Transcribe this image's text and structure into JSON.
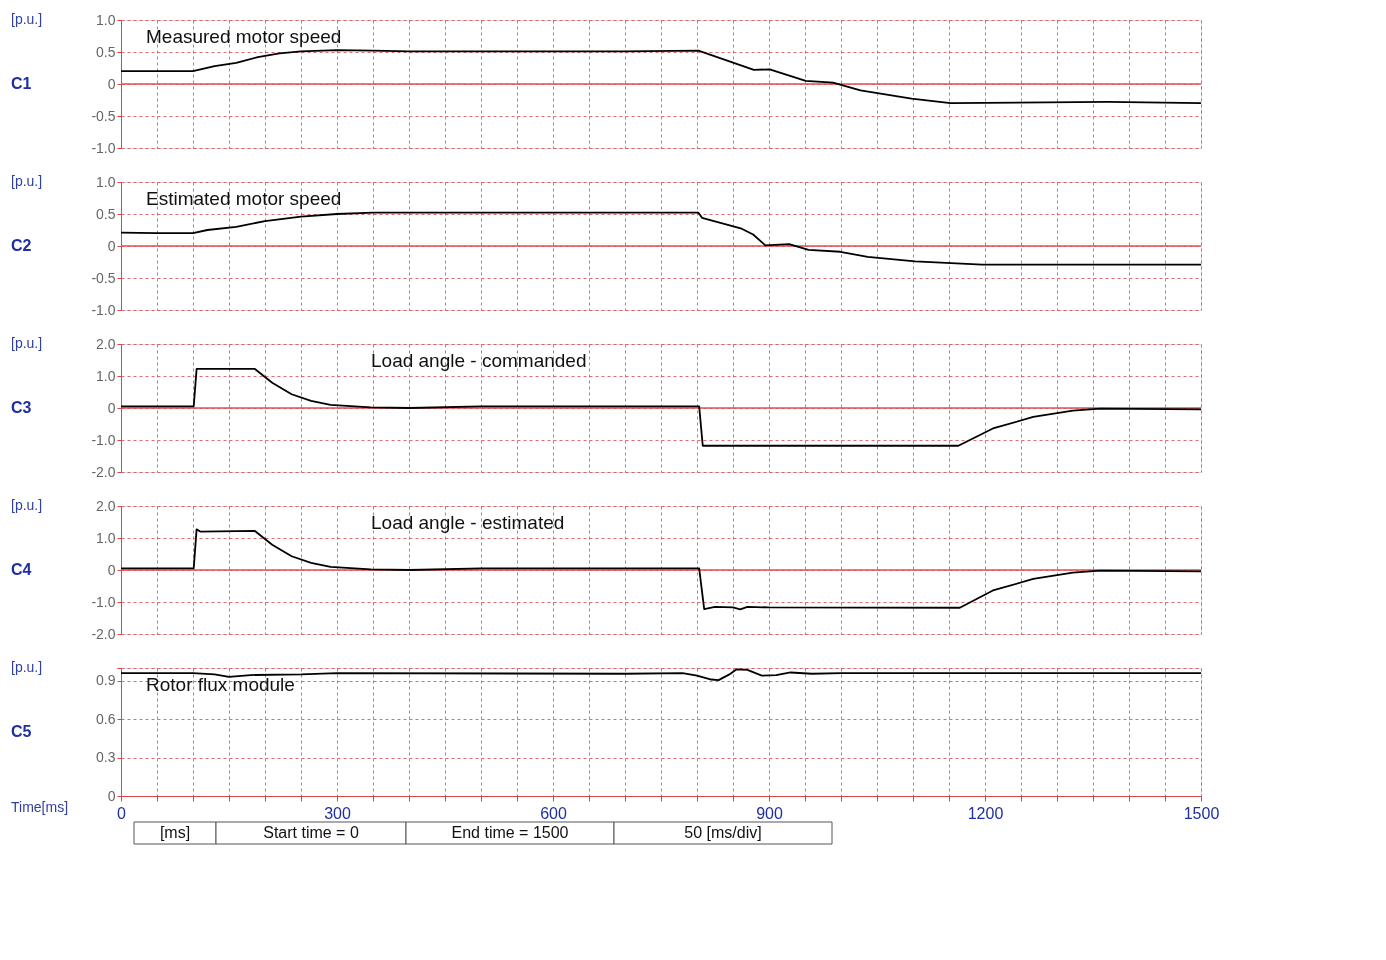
{
  "chart_data": [
    {
      "type": "line",
      "title": "Measured motor speed",
      "ylabel": "[p.u.]",
      "annotations": [
        "C1"
      ],
      "tick_labels": "y",
      "grid": true,
      "x": [
        0,
        100,
        130,
        160,
        190,
        220,
        250,
        300,
        350,
        400,
        500,
        600,
        700,
        802,
        879,
        901,
        951,
        989,
        1027,
        1098,
        1152,
        1370,
        1500
      ],
      "series": [
        {
          "color": "#000000",
          "values": [
            0.2,
            0.2,
            0.28,
            0.33,
            0.42,
            0.48,
            0.51,
            0.53,
            0.52,
            0.51,
            0.51,
            0.51,
            0.51,
            0.52,
            0.22,
            0.23,
            0.05,
            0.02,
            -0.1,
            -0.23,
            -0.3,
            -0.28,
            -0.3
          ]
        }
      ],
      "xlim": [
        0,
        1500
      ],
      "xticks": [
        0,
        {
          "value": 50,
          "label": null
        },
        {
          "value": 100,
          "label": null
        },
        {
          "value": 150,
          "label": null
        },
        {
          "value": 200,
          "label": null
        },
        {
          "value": 250,
          "label": null
        },
        300,
        {
          "value": 350,
          "label": null
        },
        {
          "value": 400,
          "label": null
        },
        {
          "value": 450,
          "label": null
        },
        {
          "value": 500,
          "label": null
        },
        {
          "value": 550,
          "label": null
        },
        600,
        {
          "value": 650,
          "label": null
        },
        {
          "value": 700,
          "label": null
        },
        {
          "value": 750,
          "label": null
        },
        {
          "value": 800,
          "label": null
        },
        {
          "value": 850,
          "label": null
        },
        900,
        {
          "value": 950,
          "label": null
        },
        {
          "value": 1000,
          "label": null
        },
        {
          "value": 1050,
          "label": null
        },
        {
          "value": 1100,
          "label": null
        },
        {
          "value": 1150,
          "label": null
        },
        1200,
        {
          "value": 1250,
          "label": null
        },
        {
          "value": 1300,
          "label": null
        },
        {
          "value": 1350,
          "label": null
        },
        {
          "value": 1400,
          "label": null
        },
        {
          "value": 1450,
          "label": null
        },
        1500
      ],
      "ylim": [
        -1,
        1
      ],
      "yticks": [
        {
          "value": -1,
          "label": "-1.0"
        },
        -0.5,
        0,
        0.5,
        {
          "value": 1,
          "label": "1.0"
        }
      ],
      "ref_lines": [
        {
          "axis": "y",
          "value": 0,
          "color": "#e05050"
        }
      ]
    },
    {
      "type": "line",
      "title": "Estimated motor speed",
      "ylabel": "[p.u.]",
      "annotations": [
        "C2"
      ],
      "tick_labels": "y",
      "grid": true,
      "x": [
        0,
        50,
        100,
        120,
        160,
        200,
        250,
        300,
        350,
        802,
        807,
        862,
        878,
        895,
        928,
        955,
        999,
        1037,
        1103,
        1196,
        1500
      ],
      "series": [
        {
          "color": "#000000",
          "values": [
            0.21,
            0.2,
            0.2,
            0.25,
            0.3,
            0.39,
            0.46,
            0.5,
            0.52,
            0.52,
            0.44,
            0.27,
            0.18,
            0.01,
            0.03,
            -0.06,
            -0.09,
            -0.17,
            -0.24,
            -0.29,
            -0.29
          ]
        }
      ],
      "xlim": [
        0,
        1500
      ],
      "xticks": [
        0,
        {
          "value": 50,
          "label": null
        },
        {
          "value": 100,
          "label": null
        },
        {
          "value": 150,
          "label": null
        },
        {
          "value": 200,
          "label": null
        },
        {
          "value": 250,
          "label": null
        },
        300,
        {
          "value": 350,
          "label": null
        },
        {
          "value": 400,
          "label": null
        },
        {
          "value": 450,
          "label": null
        },
        {
          "value": 500,
          "label": null
        },
        {
          "value": 550,
          "label": null
        },
        600,
        {
          "value": 650,
          "label": null
        },
        {
          "value": 700,
          "label": null
        },
        {
          "value": 750,
          "label": null
        },
        {
          "value": 800,
          "label": null
        },
        {
          "value": 850,
          "label": null
        },
        900,
        {
          "value": 950,
          "label": null
        },
        {
          "value": 1000,
          "label": null
        },
        {
          "value": 1050,
          "label": null
        },
        {
          "value": 1100,
          "label": null
        },
        {
          "value": 1150,
          "label": null
        },
        1200,
        {
          "value": 1250,
          "label": null
        },
        {
          "value": 1300,
          "label": null
        },
        {
          "value": 1350,
          "label": null
        },
        {
          "value": 1400,
          "label": null
        },
        {
          "value": 1450,
          "label": null
        },
        1500
      ],
      "ylim": [
        -1,
        1
      ],
      "yticks": [
        {
          "value": -1,
          "label": "-1.0"
        },
        -0.5,
        0,
        0.5,
        {
          "value": 1,
          "label": "1.0"
        }
      ],
      "ref_lines": [
        {
          "axis": "y",
          "value": 0,
          "color": "#e05050"
        }
      ]
    },
    {
      "type": "line",
      "title": "Load angle - commanded",
      "ylabel": "[p.u.]",
      "annotations": [
        "C3"
      ],
      "tick_labels": "y",
      "grid": true,
      "x": [
        0,
        101,
        105,
        186,
        210,
        237,
        264,
        291,
        347,
        401,
        500,
        600,
        700,
        803,
        808,
        1163,
        1211,
        1267,
        1322,
        1360,
        1500
      ],
      "series": [
        {
          "color": "#000000",
          "values": [
            0.05,
            0.05,
            1.22,
            1.22,
            0.79,
            0.43,
            0.22,
            0.1,
            0.02,
            0.0,
            0.05,
            0.05,
            0.05,
            0.05,
            -1.18,
            -1.18,
            -0.64,
            -0.28,
            -0.08,
            -0.02,
            -0.04
          ]
        }
      ],
      "xlim": [
        0,
        1500
      ],
      "xticks": [
        0,
        {
          "value": 50,
          "label": null
        },
        {
          "value": 100,
          "label": null
        },
        {
          "value": 150,
          "label": null
        },
        {
          "value": 200,
          "label": null
        },
        {
          "value": 250,
          "label": null
        },
        300,
        {
          "value": 350,
          "label": null
        },
        {
          "value": 400,
          "label": null
        },
        {
          "value": 450,
          "label": null
        },
        {
          "value": 500,
          "label": null
        },
        {
          "value": 550,
          "label": null
        },
        600,
        {
          "value": 650,
          "label": null
        },
        {
          "value": 700,
          "label": null
        },
        {
          "value": 750,
          "label": null
        },
        {
          "value": 800,
          "label": null
        },
        {
          "value": 850,
          "label": null
        },
        900,
        {
          "value": 950,
          "label": null
        },
        {
          "value": 1000,
          "label": null
        },
        {
          "value": 1050,
          "label": null
        },
        {
          "value": 1100,
          "label": null
        },
        {
          "value": 1150,
          "label": null
        },
        1200,
        {
          "value": 1250,
          "label": null
        },
        {
          "value": 1300,
          "label": null
        },
        {
          "value": 1350,
          "label": null
        },
        {
          "value": 1400,
          "label": null
        },
        {
          "value": 1450,
          "label": null
        },
        1500
      ],
      "ylim": [
        -2,
        2
      ],
      "yticks": [
        {
          "value": -2,
          "label": "-2.0"
        },
        {
          "value": -1,
          "label": "-1.0"
        },
        0,
        {
          "value": 1,
          "label": "1.0"
        },
        {
          "value": 2,
          "label": "2.0"
        }
      ],
      "ref_lines": [
        {
          "axis": "y",
          "value": 0,
          "color": "#e05050"
        }
      ]
    },
    {
      "type": "line",
      "title": "Load angle - estimated",
      "ylabel": "[p.u.]",
      "annotations": [
        "C4"
      ],
      "tick_labels": "y",
      "grid": true,
      "x": [
        0,
        101,
        105,
        110,
        186,
        210,
        237,
        264,
        291,
        347,
        401,
        500,
        600,
        700,
        803,
        810,
        825,
        850,
        860,
        870,
        900,
        1165,
        1211,
        1267,
        1322,
        1360,
        1500
      ],
      "series": [
        {
          "color": "#000000",
          "values": [
            0.05,
            0.05,
            1.27,
            1.2,
            1.22,
            0.79,
            0.43,
            0.22,
            0.1,
            0.02,
            0.0,
            0.05,
            0.05,
            0.05,
            0.05,
            -1.22,
            -1.15,
            -1.17,
            -1.23,
            -1.15,
            -1.17,
            -1.18,
            -0.64,
            -0.28,
            -0.08,
            -0.02,
            -0.04
          ]
        }
      ],
      "xlim": [
        0,
        1500
      ],
      "xticks": [
        0,
        {
          "value": 50,
          "label": null
        },
        {
          "value": 100,
          "label": null
        },
        {
          "value": 150,
          "label": null
        },
        {
          "value": 200,
          "label": null
        },
        {
          "value": 250,
          "label": null
        },
        300,
        {
          "value": 350,
          "label": null
        },
        {
          "value": 400,
          "label": null
        },
        {
          "value": 450,
          "label": null
        },
        {
          "value": 500,
          "label": null
        },
        {
          "value": 550,
          "label": null
        },
        600,
        {
          "value": 650,
          "label": null
        },
        {
          "value": 700,
          "label": null
        },
        {
          "value": 750,
          "label": null
        },
        {
          "value": 800,
          "label": null
        },
        {
          "value": 850,
          "label": null
        },
        900,
        {
          "value": 950,
          "label": null
        },
        {
          "value": 1000,
          "label": null
        },
        {
          "value": 1050,
          "label": null
        },
        {
          "value": 1100,
          "label": null
        },
        {
          "value": 1150,
          "label": null
        },
        1200,
        {
          "value": 1250,
          "label": null
        },
        {
          "value": 1300,
          "label": null
        },
        {
          "value": 1350,
          "label": null
        },
        {
          "value": 1400,
          "label": null
        },
        {
          "value": 1450,
          "label": null
        },
        1500
      ],
      "ylim": [
        -2,
        2
      ],
      "yticks": [
        {
          "value": -2,
          "label": "-2.0"
        },
        {
          "value": -1,
          "label": "-1.0"
        },
        0,
        {
          "value": 1,
          "label": "1.0"
        },
        {
          "value": 2,
          "label": "2.0"
        }
      ],
      "ref_lines": [
        {
          "axis": "y",
          "value": 0,
          "color": "#e05050"
        }
      ]
    },
    {
      "type": "line",
      "title": "Rotor flux module",
      "ylabel": "[p.u.]",
      "xlabel": "Time[ms]",
      "annotations": [
        "C5",
        "[ms]",
        "Start time = 0",
        "End time = 1500",
        "50 [ms/div]"
      ],
      "grid": true,
      "x": [
        0,
        100,
        130,
        150,
        180,
        250,
        300,
        700,
        780,
        800,
        820,
        830,
        845,
        855,
        870,
        890,
        910,
        930,
        960,
        1000,
        1500
      ],
      "series": [
        {
          "color": "#000000",
          "values": [
            0.96,
            0.96,
            0.95,
            0.93,
            0.945,
            0.95,
            0.96,
            0.955,
            0.96,
            0.94,
            0.91,
            0.905,
            0.95,
            0.99,
            0.985,
            0.94,
            0.945,
            0.965,
            0.955,
            0.96,
            0.96
          ]
        }
      ],
      "xlim": [
        0,
        1500
      ],
      "xticks": [
        0,
        {
          "value": 50,
          "label": null
        },
        {
          "value": 100,
          "label": null
        },
        {
          "value": 150,
          "label": null
        },
        {
          "value": 200,
          "label": null
        },
        {
          "value": 250,
          "label": null
        },
        300,
        {
          "value": 350,
          "label": null
        },
        {
          "value": 400,
          "label": null
        },
        {
          "value": 450,
          "label": null
        },
        {
          "value": 500,
          "label": null
        },
        {
          "value": 550,
          "label": null
        },
        600,
        {
          "value": 650,
          "label": null
        },
        {
          "value": 700,
          "label": null
        },
        {
          "value": 750,
          "label": null
        },
        {
          "value": 800,
          "label": null
        },
        {
          "value": 850,
          "label": null
        },
        900,
        {
          "value": 950,
          "label": null
        },
        {
          "value": 1000,
          "label": null
        },
        {
          "value": 1050,
          "label": null
        },
        {
          "value": 1100,
          "label": null
        },
        {
          "value": 1150,
          "label": null
        },
        1200,
        {
          "value": 1250,
          "label": null
        },
        {
          "value": 1300,
          "label": null
        },
        {
          "value": 1350,
          "label": null
        },
        {
          "value": 1400,
          "label": null
        },
        {
          "value": 1450,
          "label": null
        },
        1500
      ],
      "ylim": [
        0,
        1
      ],
      "yticks": [
        0,
        0.3,
        0.6,
        0.9,
        {
          "value": 1,
          "label": null
        }
      ]
    }
  ]
}
